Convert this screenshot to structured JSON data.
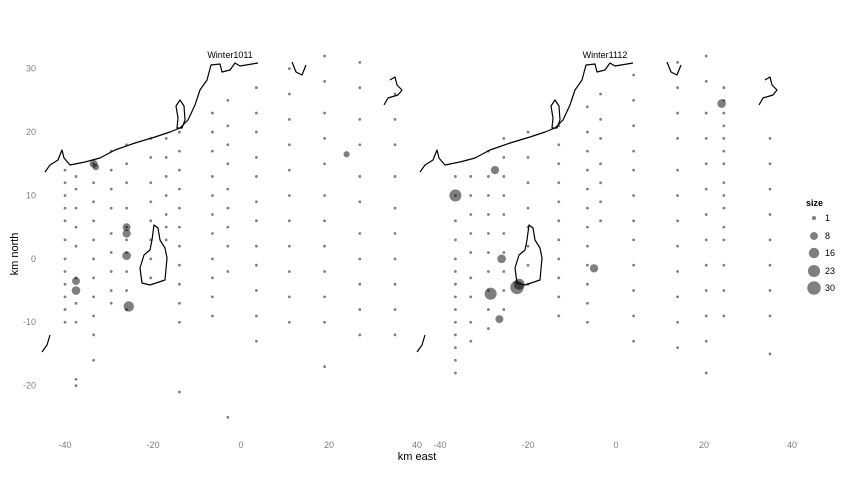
{
  "chart_data": {
    "type": "scatter",
    "xlabel": "km east",
    "ylabel": "km north",
    "xlim": [
      -45,
      40
    ],
    "ylim": [
      -27,
      35
    ],
    "x_ticks": [
      -40,
      -20,
      0,
      20,
      40
    ],
    "y_ticks": [
      -20,
      -10,
      0,
      10,
      20,
      30
    ],
    "grid": false,
    "point_color": "#000000",
    "point_opacity": 0.5,
    "legend": {
      "title": "size",
      "position": "right",
      "entries": [
        {
          "label": "1",
          "value": 1
        },
        {
          "label": "8",
          "value": 8
        },
        {
          "label": "16",
          "value": 16
        },
        {
          "label": "23",
          "value": 23
        },
        {
          "label": "30",
          "value": 30
        }
      ]
    },
    "panels": [
      {
        "label": "Winter1011",
        "transects": [
          {
            "x": -40,
            "y": [
              14,
              12,
              10,
              8,
              6,
              3,
              0,
              -2,
              -4,
              -6,
              -8,
              -10
            ]
          },
          {
            "x": -37.5,
            "y": [
              13,
              11,
              8,
              5,
              2,
              -3,
              -7,
              -10,
              -19,
              -20
            ]
          },
          {
            "x": -33.5,
            "y": [
              15,
              12,
              9,
              6,
              3,
              0,
              -3,
              -6,
              -9,
              -12,
              -16
            ]
          },
          {
            "x": -29.5,
            "y": [
              17,
              14,
              11,
              8,
              4,
              1,
              -2,
              -5,
              -7
            ]
          },
          {
            "x": -26,
            "y": [
              18,
              15,
              12,
              8,
              5,
              3,
              1,
              -2,
              -5,
              -8
            ]
          },
          {
            "x": -20.5,
            "y": [
              19,
              16,
              12,
              9,
              6,
              3,
              0,
              -3
            ]
          },
          {
            "x": -17,
            "y": [
              19,
              16,
              13,
              10,
              7,
              5,
              3
            ]
          },
          {
            "x": -14,
            "y": [
              20,
              17,
              14,
              11,
              8,
              5,
              2,
              -1,
              -4,
              -7,
              -10,
              -21
            ]
          },
          {
            "x": -6.5,
            "y": [
              23,
              20,
              17,
              13,
              10,
              7,
              4,
              0,
              -3,
              -6,
              -9
            ]
          },
          {
            "x": -3,
            "y": [
              25,
              21,
              18,
              15,
              11,
              8,
              5,
              2,
              -2,
              -25
            ]
          },
          {
            "x": 3.5,
            "y": [
              27,
              23,
              20,
              16,
              13,
              9,
              6,
              2,
              -1,
              -5,
              -9,
              -13
            ]
          },
          {
            "x": 11,
            "y": [
              30,
              26,
              22,
              18,
              14,
              10,
              6,
              2,
              -2,
              -6,
              -10
            ]
          },
          {
            "x": 19,
            "y": [
              32,
              28,
              23,
              19,
              15,
              10,
              6,
              2,
              -2,
              -6,
              -10,
              -17
            ]
          },
          {
            "x": 27,
            "y": [
              31,
              27,
              22,
              18,
              13,
              9,
              4,
              0,
              -4,
              -8,
              -12
            ]
          },
          {
            "x": 35,
            "y": [
              26,
              22,
              18,
              13,
              8,
              4,
              0,
              -4,
              -8,
              -12
            ]
          }
        ],
        "large_points": [
          {
            "x": -33.5,
            "y": 15,
            "size": 8
          },
          {
            "x": -37.5,
            "y": -5,
            "size": 10
          },
          {
            "x": -37.5,
            "y": -3.5,
            "size": 8
          },
          {
            "x": -26,
            "y": 5,
            "size": 8
          },
          {
            "x": -26,
            "y": 4,
            "size": 9
          },
          {
            "x": -26,
            "y": 0.5,
            "size": 10
          },
          {
            "x": -25.5,
            "y": -7.5,
            "size": 16
          },
          {
            "x": -33,
            "y": 14.5,
            "size": 5
          },
          {
            "x": 24,
            "y": 16.5,
            "size": 4
          }
        ]
      },
      {
        "label": "Winter1112",
        "transects": [
          {
            "x": -36.5,
            "y": [
              13,
              10,
              6,
              3,
              0,
              -2,
              -4,
              -6,
              -8,
              -10,
              -12,
              -14,
              -16,
              -18
            ]
          },
          {
            "x": -33,
            "y": [
              13,
              10,
              7,
              4,
              1,
              -3,
              -6,
              -10,
              -13
            ]
          },
          {
            "x": -29,
            "y": [
              17,
              13,
              10,
              7,
              4,
              1,
              -2,
              -5,
              -8,
              -11
            ]
          },
          {
            "x": -25.5,
            "y": [
              19,
              16,
              13,
              10,
              7,
              4,
              1,
              -2,
              -5,
              -8
            ]
          },
          {
            "x": -20,
            "y": [
              20,
              16,
              12,
              8,
              5,
              2,
              -1,
              -4
            ]
          },
          {
            "x": -13,
            "y": [
              21,
              18,
              15,
              12,
              9,
              6,
              3,
              0,
              -3,
              -6,
              -9
            ]
          },
          {
            "x": -6.5,
            "y": [
              24,
              20,
              17,
              14,
              11,
              8,
              5,
              2,
              -1,
              -4,
              -7,
              -10
            ]
          },
          {
            "x": -3.5,
            "y": [
              26,
              22,
              19,
              15,
              12,
              9,
              6
            ]
          },
          {
            "x": 4,
            "y": [
              29,
              25,
              21,
              17,
              14,
              10,
              6,
              3,
              -1,
              -5,
              -9,
              -13
            ]
          },
          {
            "x": 14,
            "y": [
              31,
              27,
              23,
              19,
              14,
              10,
              6,
              2,
              -2,
              -6,
              -10,
              -14
            ]
          },
          {
            "x": 20.5,
            "y": [
              32,
              28,
              23,
              19,
              15,
              11,
              7,
              3,
              -1,
              -5,
              -9,
              -13,
              -18
            ]
          },
          {
            "x": 24.5,
            "y": [
              27,
              25,
              23,
              21,
              19,
              17,
              15,
              12,
              10,
              8,
              5,
              3,
              -1,
              -5,
              -9
            ]
          },
          {
            "x": 35,
            "y": [
              19,
              15,
              11,
              7,
              3,
              -1,
              -5,
              -9,
              -15
            ]
          }
        ],
        "large_points": [
          {
            "x": -36.5,
            "y": 10,
            "size": 23
          },
          {
            "x": -28.5,
            "y": -5.5,
            "size": 23
          },
          {
            "x": -22.5,
            "y": -4.5,
            "size": 30
          },
          {
            "x": -22,
            "y": -4,
            "size": 18
          },
          {
            "x": -26,
            "y": 0,
            "size": 10
          },
          {
            "x": -27.5,
            "y": 14,
            "size": 9
          },
          {
            "x": -26.5,
            "y": -9.5,
            "size": 8
          },
          {
            "x": -5,
            "y": -1.5,
            "size": 9
          },
          {
            "x": 24,
            "y": 24.5,
            "size": 10
          }
        ]
      }
    ]
  }
}
